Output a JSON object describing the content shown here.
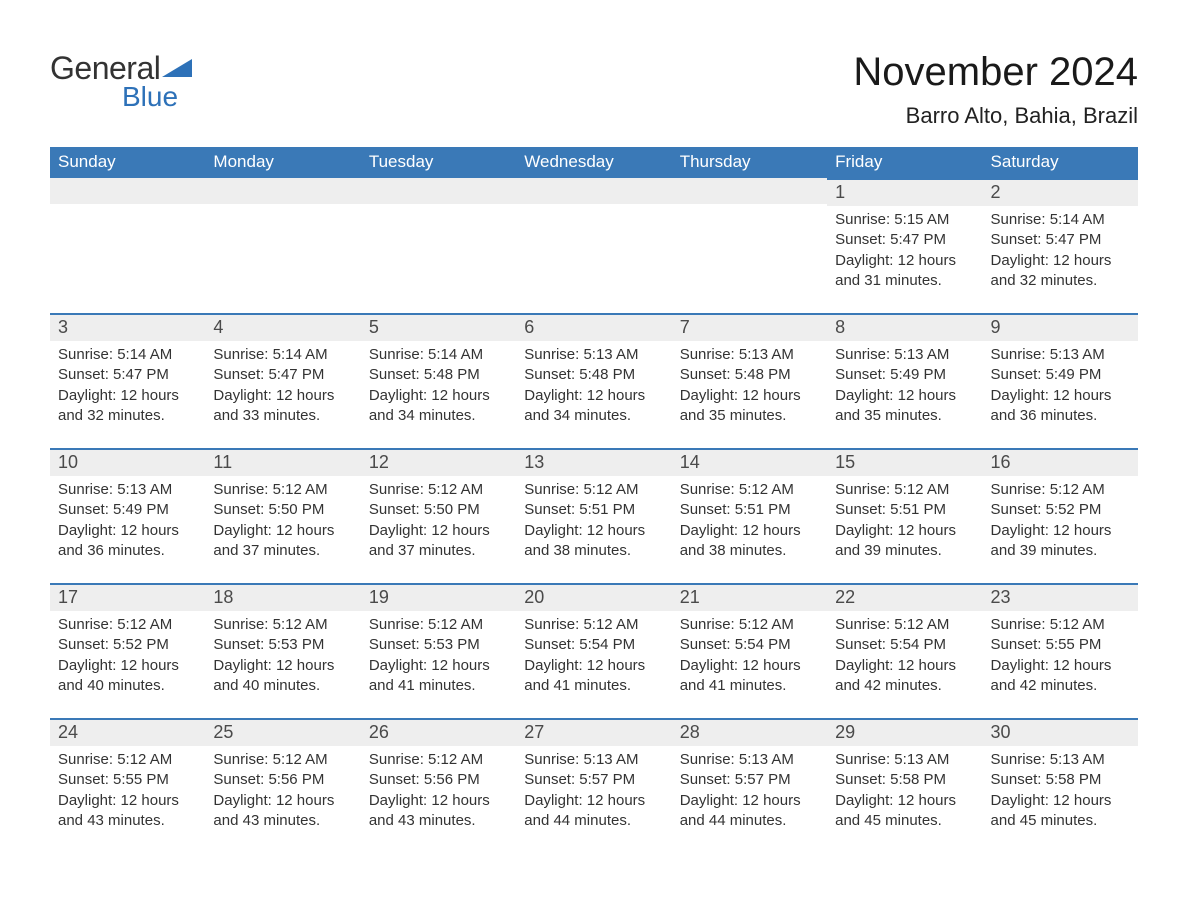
{
  "logo": {
    "text_general": "General",
    "text_blue": "Blue",
    "accent_color": "#2d71b8"
  },
  "title": "November 2024",
  "location": "Barro Alto, Bahia, Brazil",
  "colors": {
    "header_bg": "#3a79b7",
    "header_text": "#ffffff",
    "daynum_bg": "#eeeeee",
    "row_border": "#3a79b7",
    "page_bg": "#ffffff",
    "body_text": "#333333"
  },
  "fonts": {
    "title_size": 40,
    "location_size": 22,
    "dayhead_size": 17,
    "daynum_size": 18,
    "body_size": 15
  },
  "day_headers": [
    "Sunday",
    "Monday",
    "Tuesday",
    "Wednesday",
    "Thursday",
    "Friday",
    "Saturday"
  ],
  "weeks": [
    [
      null,
      null,
      null,
      null,
      null,
      {
        "n": "1",
        "sunrise": "Sunrise: 5:15 AM",
        "sunset": "Sunset: 5:47 PM",
        "daylight": "Daylight: 12 hours and 31 minutes."
      },
      {
        "n": "2",
        "sunrise": "Sunrise: 5:14 AM",
        "sunset": "Sunset: 5:47 PM",
        "daylight": "Daylight: 12 hours and 32 minutes."
      }
    ],
    [
      {
        "n": "3",
        "sunrise": "Sunrise: 5:14 AM",
        "sunset": "Sunset: 5:47 PM",
        "daylight": "Daylight: 12 hours and 32 minutes."
      },
      {
        "n": "4",
        "sunrise": "Sunrise: 5:14 AM",
        "sunset": "Sunset: 5:47 PM",
        "daylight": "Daylight: 12 hours and 33 minutes."
      },
      {
        "n": "5",
        "sunrise": "Sunrise: 5:14 AM",
        "sunset": "Sunset: 5:48 PM",
        "daylight": "Daylight: 12 hours and 34 minutes."
      },
      {
        "n": "6",
        "sunrise": "Sunrise: 5:13 AM",
        "sunset": "Sunset: 5:48 PM",
        "daylight": "Daylight: 12 hours and 34 minutes."
      },
      {
        "n": "7",
        "sunrise": "Sunrise: 5:13 AM",
        "sunset": "Sunset: 5:48 PM",
        "daylight": "Daylight: 12 hours and 35 minutes."
      },
      {
        "n": "8",
        "sunrise": "Sunrise: 5:13 AM",
        "sunset": "Sunset: 5:49 PM",
        "daylight": "Daylight: 12 hours and 35 minutes."
      },
      {
        "n": "9",
        "sunrise": "Sunrise: 5:13 AM",
        "sunset": "Sunset: 5:49 PM",
        "daylight": "Daylight: 12 hours and 36 minutes."
      }
    ],
    [
      {
        "n": "10",
        "sunrise": "Sunrise: 5:13 AM",
        "sunset": "Sunset: 5:49 PM",
        "daylight": "Daylight: 12 hours and 36 minutes."
      },
      {
        "n": "11",
        "sunrise": "Sunrise: 5:12 AM",
        "sunset": "Sunset: 5:50 PM",
        "daylight": "Daylight: 12 hours and 37 minutes."
      },
      {
        "n": "12",
        "sunrise": "Sunrise: 5:12 AM",
        "sunset": "Sunset: 5:50 PM",
        "daylight": "Daylight: 12 hours and 37 minutes."
      },
      {
        "n": "13",
        "sunrise": "Sunrise: 5:12 AM",
        "sunset": "Sunset: 5:51 PM",
        "daylight": "Daylight: 12 hours and 38 minutes."
      },
      {
        "n": "14",
        "sunrise": "Sunrise: 5:12 AM",
        "sunset": "Sunset: 5:51 PM",
        "daylight": "Daylight: 12 hours and 38 minutes."
      },
      {
        "n": "15",
        "sunrise": "Sunrise: 5:12 AM",
        "sunset": "Sunset: 5:51 PM",
        "daylight": "Daylight: 12 hours and 39 minutes."
      },
      {
        "n": "16",
        "sunrise": "Sunrise: 5:12 AM",
        "sunset": "Sunset: 5:52 PM",
        "daylight": "Daylight: 12 hours and 39 minutes."
      }
    ],
    [
      {
        "n": "17",
        "sunrise": "Sunrise: 5:12 AM",
        "sunset": "Sunset: 5:52 PM",
        "daylight": "Daylight: 12 hours and 40 minutes."
      },
      {
        "n": "18",
        "sunrise": "Sunrise: 5:12 AM",
        "sunset": "Sunset: 5:53 PM",
        "daylight": "Daylight: 12 hours and 40 minutes."
      },
      {
        "n": "19",
        "sunrise": "Sunrise: 5:12 AM",
        "sunset": "Sunset: 5:53 PM",
        "daylight": "Daylight: 12 hours and 41 minutes."
      },
      {
        "n": "20",
        "sunrise": "Sunrise: 5:12 AM",
        "sunset": "Sunset: 5:54 PM",
        "daylight": "Daylight: 12 hours and 41 minutes."
      },
      {
        "n": "21",
        "sunrise": "Sunrise: 5:12 AM",
        "sunset": "Sunset: 5:54 PM",
        "daylight": "Daylight: 12 hours and 41 minutes."
      },
      {
        "n": "22",
        "sunrise": "Sunrise: 5:12 AM",
        "sunset": "Sunset: 5:54 PM",
        "daylight": "Daylight: 12 hours and 42 minutes."
      },
      {
        "n": "23",
        "sunrise": "Sunrise: 5:12 AM",
        "sunset": "Sunset: 5:55 PM",
        "daylight": "Daylight: 12 hours and 42 minutes."
      }
    ],
    [
      {
        "n": "24",
        "sunrise": "Sunrise: 5:12 AM",
        "sunset": "Sunset: 5:55 PM",
        "daylight": "Daylight: 12 hours and 43 minutes."
      },
      {
        "n": "25",
        "sunrise": "Sunrise: 5:12 AM",
        "sunset": "Sunset: 5:56 PM",
        "daylight": "Daylight: 12 hours and 43 minutes."
      },
      {
        "n": "26",
        "sunrise": "Sunrise: 5:12 AM",
        "sunset": "Sunset: 5:56 PM",
        "daylight": "Daylight: 12 hours and 43 minutes."
      },
      {
        "n": "27",
        "sunrise": "Sunrise: 5:13 AM",
        "sunset": "Sunset: 5:57 PM",
        "daylight": "Daylight: 12 hours and 44 minutes."
      },
      {
        "n": "28",
        "sunrise": "Sunrise: 5:13 AM",
        "sunset": "Sunset: 5:57 PM",
        "daylight": "Daylight: 12 hours and 44 minutes."
      },
      {
        "n": "29",
        "sunrise": "Sunrise: 5:13 AM",
        "sunset": "Sunset: 5:58 PM",
        "daylight": "Daylight: 12 hours and 45 minutes."
      },
      {
        "n": "30",
        "sunrise": "Sunrise: 5:13 AM",
        "sunset": "Sunset: 5:58 PM",
        "daylight": "Daylight: 12 hours and 45 minutes."
      }
    ]
  ]
}
